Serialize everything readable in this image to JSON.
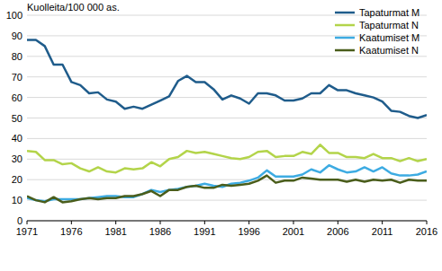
{
  "chart_data": {
    "type": "line",
    "ylabel": "Kuolleita/100 000 as.",
    "x": [
      1971,
      1972,
      1973,
      1974,
      1975,
      1976,
      1977,
      1978,
      1979,
      1980,
      1981,
      1982,
      1983,
      1984,
      1985,
      1986,
      1987,
      1988,
      1989,
      1990,
      1991,
      1992,
      1993,
      1994,
      1995,
      1996,
      1997,
      1998,
      1999,
      2000,
      2001,
      2002,
      2003,
      2004,
      2005,
      2006,
      2007,
      2008,
      2009,
      2010,
      2011,
      2012,
      2013,
      2014,
      2015,
      2016
    ],
    "xlim": [
      1971,
      2016
    ],
    "xticks": [
      1971,
      1976,
      1981,
      1986,
      1991,
      1996,
      2001,
      2006,
      2011,
      2016
    ],
    "ylim": [
      0,
      100
    ],
    "yticks": [
      0,
      10,
      20,
      30,
      40,
      50,
      60,
      70,
      80,
      90,
      100
    ],
    "grid": true,
    "legend": "upper right",
    "series": [
      {
        "name": "Tapaturmat M",
        "color": "#1f5c8b",
        "values": [
          88,
          88,
          85,
          76,
          76,
          67.5,
          66,
          62,
          62.5,
          59,
          58,
          54.5,
          55.5,
          54.5,
          56.5,
          58.5,
          60.5,
          68,
          70.5,
          67.5,
          67.5,
          64,
          59,
          61,
          59.5,
          57,
          62,
          62,
          61,
          58.5,
          58.5,
          59.5,
          62,
          62,
          66,
          63.5,
          63.5,
          62,
          61,
          60,
          58,
          53.5,
          53,
          51,
          50,
          51.5
        ]
      },
      {
        "name": "Tapaturmat N",
        "color": "#b3d44a",
        "values": [
          34,
          33.5,
          29.5,
          29.5,
          27.5,
          28,
          25.5,
          24,
          26,
          24,
          23.5,
          25.5,
          25,
          25.5,
          28.5,
          26.5,
          30,
          31,
          34,
          33,
          33.5,
          32.5,
          31.5,
          30.5,
          30,
          31,
          33.5,
          34,
          31,
          31.5,
          31.5,
          33.5,
          32.5,
          37,
          33,
          33,
          31,
          31,
          30.5,
          32.5,
          30.5,
          30.5,
          29,
          30.5,
          29,
          30
        ]
      },
      {
        "name": "Kaatumiset M",
        "color": "#3dabe2",
        "values": [
          11,
          10,
          9.5,
          10.5,
          10.5,
          10.5,
          10.5,
          11,
          11.5,
          12,
          12,
          11.5,
          11.5,
          13,
          15,
          14,
          15,
          15.5,
          16.5,
          17,
          18,
          17,
          16.5,
          18,
          18.5,
          19.5,
          21,
          24.5,
          21.5,
          21.5,
          21.5,
          22.5,
          25,
          23.5,
          27,
          25,
          23.5,
          24,
          26,
          24,
          26,
          23,
          22,
          22,
          22.5,
          24
        ]
      },
      {
        "name": "Kaatumiset N",
        "color": "#4a5d1b",
        "values": [
          12,
          10,
          9,
          11.5,
          9,
          9.5,
          10.5,
          11,
          10.5,
          11,
          11,
          12,
          12,
          13,
          14.5,
          12,
          15,
          15,
          16.5,
          17,
          16,
          16,
          17.5,
          17,
          17.5,
          18,
          19.5,
          22,
          18.5,
          19.5,
          19.5,
          21,
          20.5,
          20,
          20,
          20,
          19,
          20,
          19,
          20,
          19.5,
          20,
          18.5,
          20,
          19.5,
          19.5
        ]
      }
    ]
  }
}
